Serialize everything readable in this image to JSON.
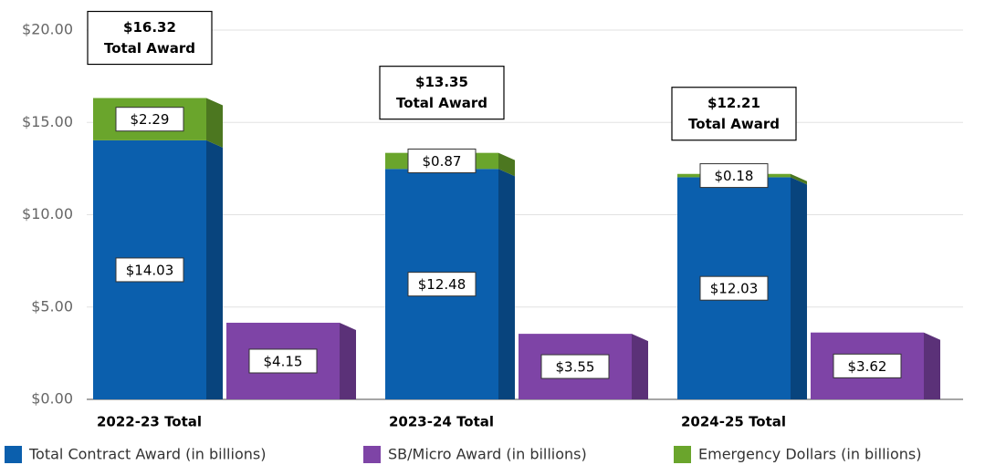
{
  "chart_data": {
    "type": "bar",
    "categories": [
      "2022-23 Total",
      "2023-24 Total",
      "2024-25 Total"
    ],
    "series": [
      {
        "name": "Total Contract Award (in billions)",
        "color": "#0b5fad",
        "stack": "award",
        "values": [
          14.03,
          12.48,
          12.03
        ],
        "value_labels": [
          "$14.03",
          "$12.48",
          "$12.03"
        ]
      },
      {
        "name": "SB/Micro Award (in billions)",
        "color": "#7e44a6",
        "stack": "sb",
        "values": [
          4.15,
          3.55,
          3.62
        ],
        "value_labels": [
          "$4.15",
          "$3.55",
          "$3.62"
        ]
      },
      {
        "name": "Emergency Dollars (in billions)",
        "color": "#6aa52c",
        "stack": "award",
        "values": [
          2.29,
          0.87,
          0.18
        ],
        "value_labels": [
          "$2.29",
          "$0.87",
          "$0.18"
        ]
      }
    ],
    "totals": {
      "values": [
        16.32,
        13.35,
        12.21
      ],
      "value_labels": [
        "$16.32",
        "$13.35",
        "$12.21"
      ],
      "caption": "Total Award"
    },
    "ylim": [
      0,
      20
    ],
    "yticks": [
      {
        "value": 0,
        "label": "$0.00"
      },
      {
        "value": 5,
        "label": "$5.00"
      },
      {
        "value": 10,
        "label": "$10.00"
      },
      {
        "value": 15,
        "label": "$15.00"
      },
      {
        "value": 20,
        "label": "$20.00"
      }
    ],
    "grid": true
  }
}
